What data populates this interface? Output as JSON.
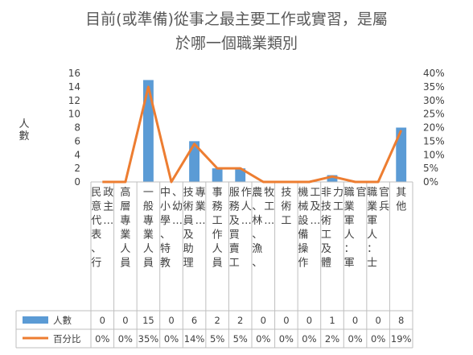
{
  "chart_data": {
    "type": "bar",
    "title_lines": [
      "目前(或準備)從事之最主要工作或實習，是屬",
      "於哪一個職業類別"
    ],
    "ylabel": "人數",
    "ylim": [
      0,
      16
    ],
    "y_ticks": [
      "0",
      "2",
      "4",
      "6",
      "8",
      "10",
      "12",
      "14",
      "16"
    ],
    "y2lim": [
      0,
      40
    ],
    "y2_ticks": [
      "0%",
      "5%",
      "10%",
      "15%",
      "20%",
      "25%",
      "30%",
      "35%",
      "40%"
    ],
    "categories": [
      "民意代表、行政主…",
      "高層專業人員",
      "一般專業人員",
      "中小學、特教、幼…",
      "技術員及助理專業…",
      "事務工作人員",
      "服務及買賣工作人…",
      "農、林、漁、牧工…",
      "技術工",
      "機械設備操作工及…",
      "非技術工及體力工",
      "職業軍人：軍官",
      "職業軍人：士官兵",
      "其他"
    ],
    "series": [
      {
        "name": "人數",
        "type": "bar",
        "axis": "left",
        "color": "#5B9BD5",
        "values": [
          0,
          0,
          15,
          0,
          6,
          2,
          2,
          0,
          0,
          0,
          1,
          0,
          0,
          8
        ],
        "labels": [
          "0",
          "0",
          "15",
          "0",
          "6",
          "2",
          "2",
          "0",
          "0",
          "0",
          "1",
          "0",
          "0",
          "8"
        ]
      },
      {
        "name": "百分比",
        "type": "line",
        "axis": "right",
        "color": "#ED7D31",
        "values": [
          0,
          0,
          35,
          0,
          14,
          5,
          5,
          0,
          0,
          0,
          2,
          0,
          0,
          19
        ],
        "labels": [
          "0%",
          "0%",
          "35%",
          "0%",
          "14%",
          "5%",
          "5%",
          "0%",
          "0%",
          "0%",
          "2%",
          "0%",
          "0%",
          "19%"
        ]
      }
    ],
    "grid": false,
    "legend": "data-table"
  }
}
